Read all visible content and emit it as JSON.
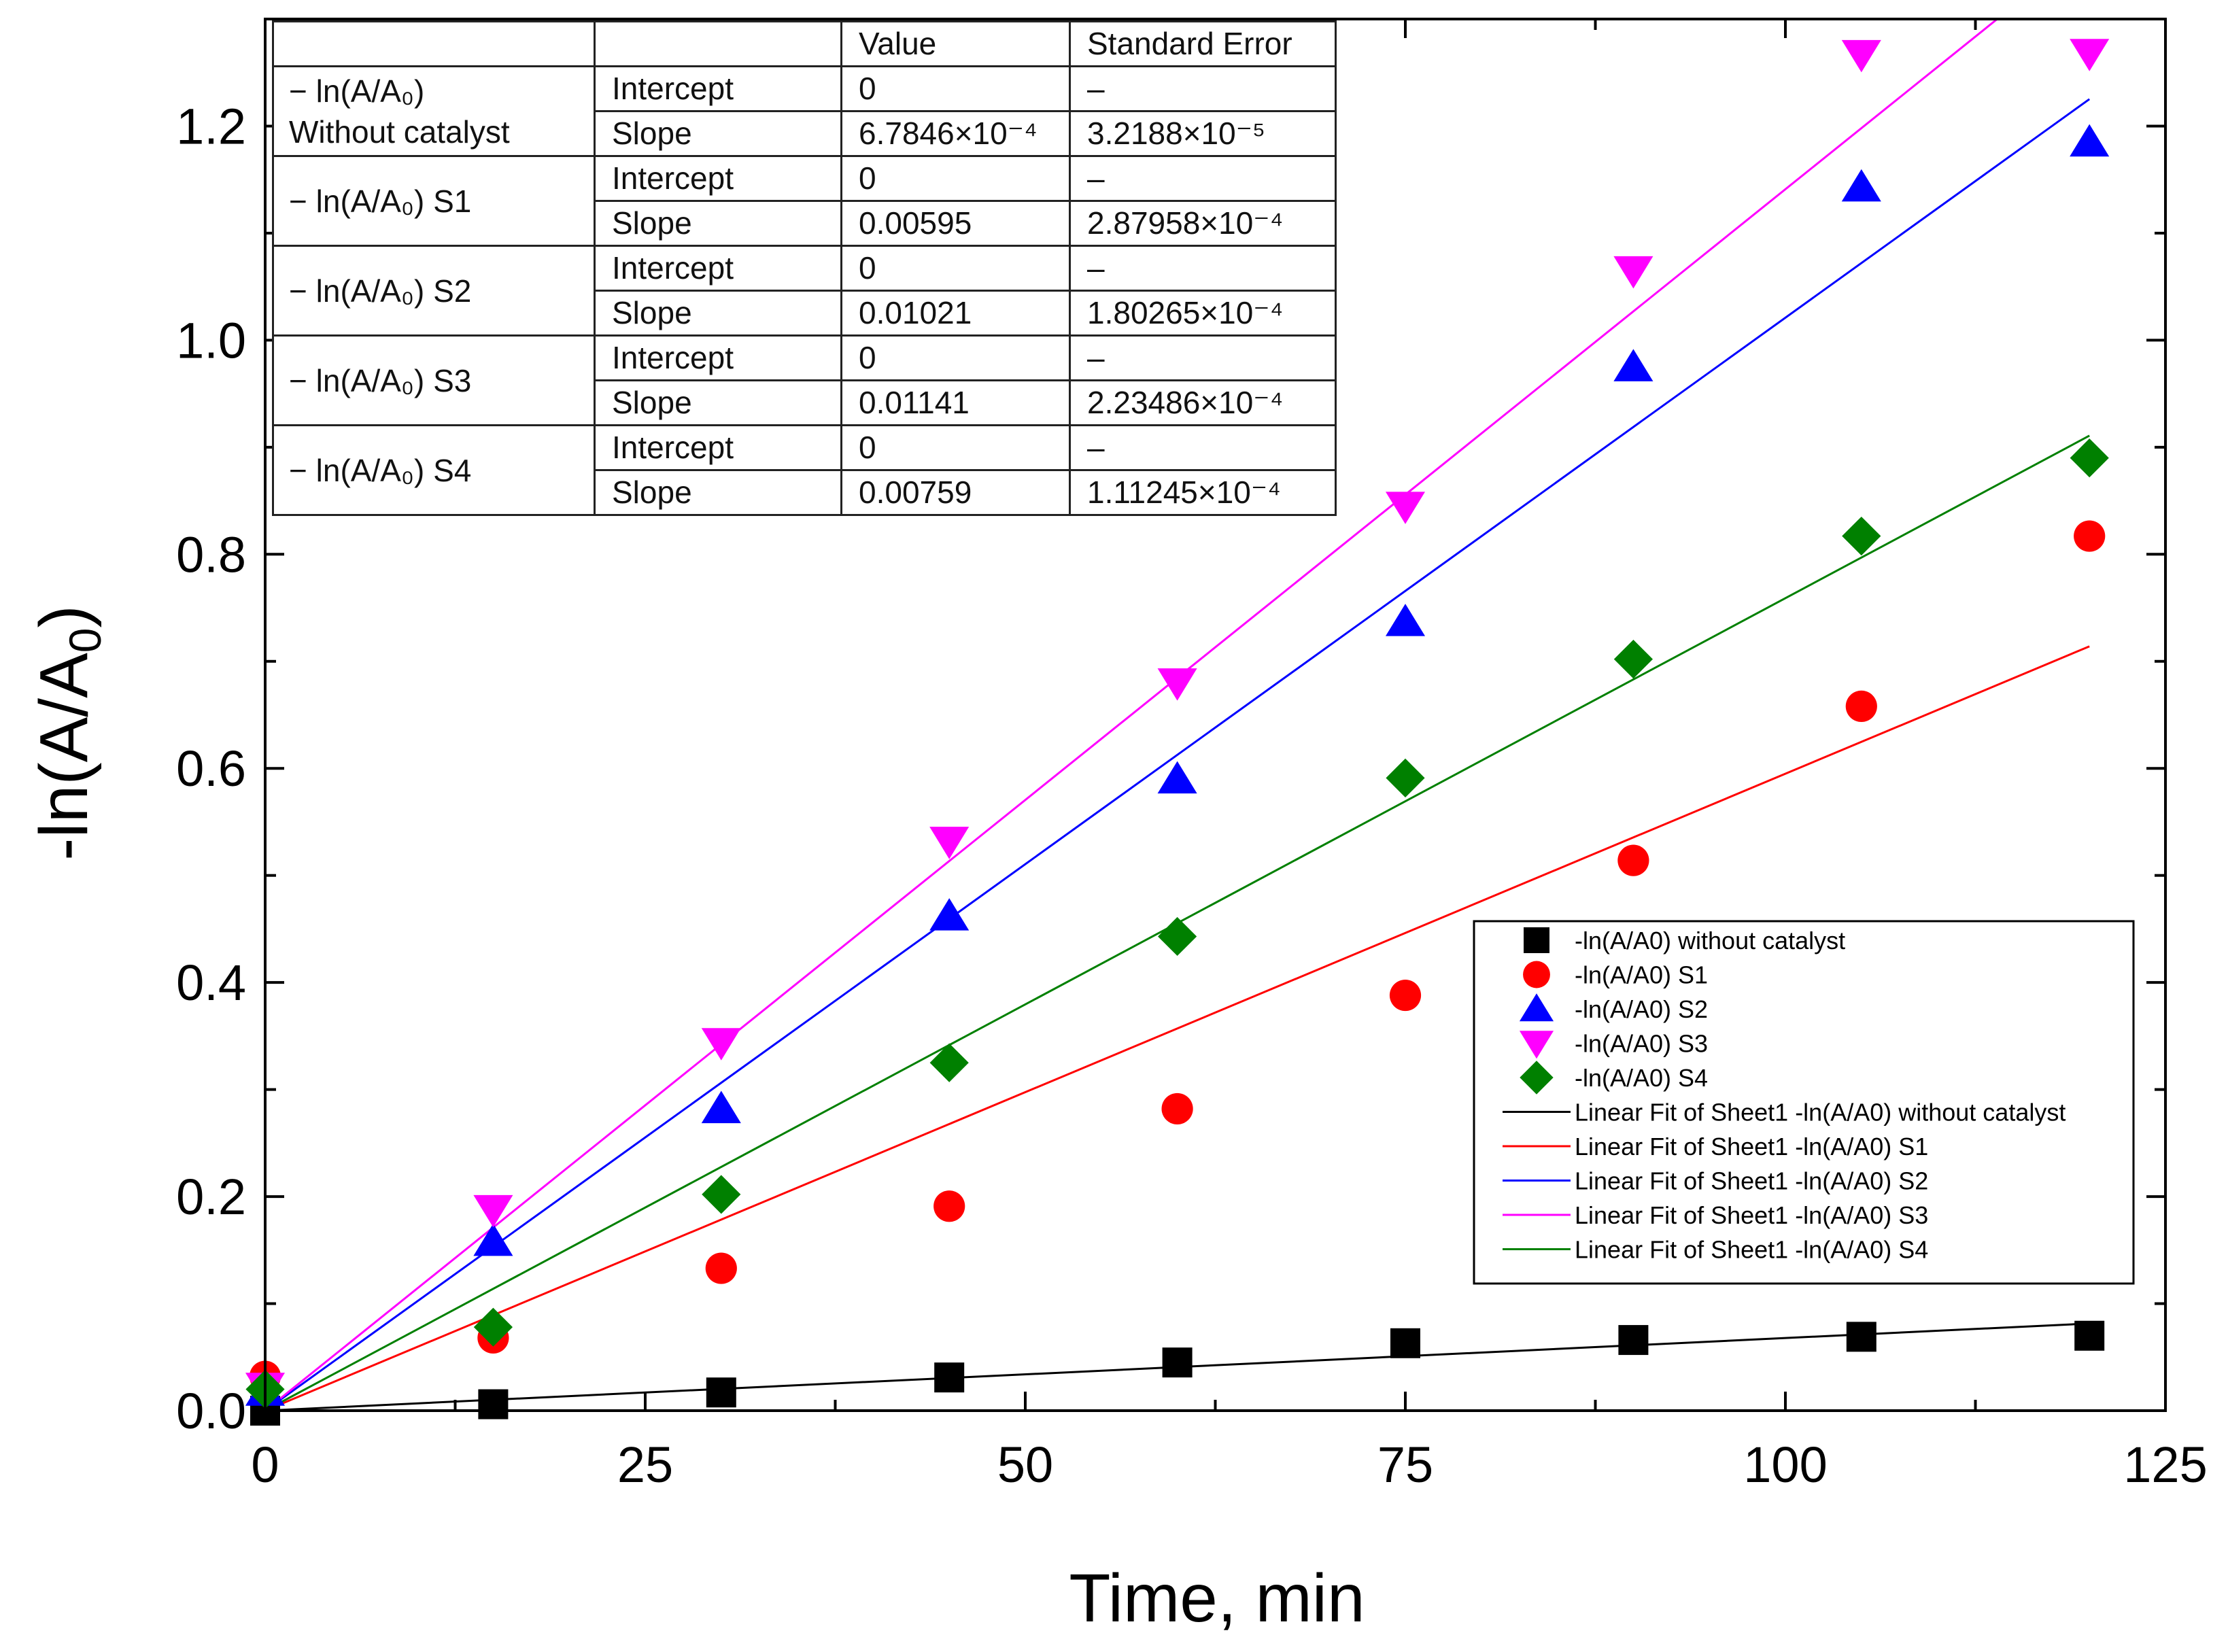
{
  "chart_data": {
    "type": "scatter",
    "xlabel": "Time, min",
    "ylabel": "-ln(A/A0)",
    "ylabel_main": "-ln(A/A",
    "ylabel_sub": "0",
    "ylabel_close": ")",
    "xlim": [
      0,
      125
    ],
    "ylim": [
      0,
      1.3
    ],
    "x_ticks": [
      "0",
      "25",
      "50",
      "75",
      "100",
      "125"
    ],
    "y_ticks": [
      "0.0",
      "0.2",
      "0.4",
      "0.6",
      "0.8",
      "1.0",
      "1.2"
    ],
    "x": [
      0,
      15,
      30,
      45,
      60,
      75,
      90,
      105,
      120
    ],
    "series": [
      {
        "name": "-ln(A/A0) without catalyst",
        "marker": "square",
        "color": "#000000",
        "values": [
          0.0,
          0.006,
          0.017,
          0.031,
          0.045,
          0.063,
          0.066,
          0.069,
          0.07
        ]
      },
      {
        "name": "-ln(A/A0) S1",
        "marker": "circle",
        "color": "#ff0000",
        "values": [
          0.032,
          0.068,
          0.133,
          0.191,
          0.282,
          0.388,
          0.514,
          0.658,
          0.817
        ]
      },
      {
        "name": "-ln(A/A0) S2",
        "marker": "triangle-up",
        "color": "#0000ff",
        "values": [
          0.018,
          0.158,
          0.282,
          0.462,
          0.59,
          0.737,
          0.975,
          1.143,
          1.185
        ]
      },
      {
        "name": "-ln(A/A0) S3",
        "marker": "triangle-down",
        "color": "#ff00ff",
        "values": [
          0.022,
          0.188,
          0.344,
          0.532,
          0.68,
          0.845,
          1.065,
          1.267,
          1.268
        ]
      },
      {
        "name": "-ln(A/A0) S4",
        "marker": "diamond",
        "color": "#008000",
        "values": [
          0.02,
          0.078,
          0.202,
          0.325,
          0.443,
          0.591,
          0.702,
          0.817,
          0.89
        ]
      }
    ],
    "fits": [
      {
        "name": "Linear Fit of Sheet1 -ln(A/A0) without catalyst",
        "color": "#000000",
        "intercept": 0,
        "slope": 0.00067846
      },
      {
        "name": "Linear Fit of Sheet1 -ln(A/A0) S1",
        "color": "#ff0000",
        "intercept": 0,
        "slope": 0.00595
      },
      {
        "name": "Linear Fit of Sheet1 -ln(A/A0) S2",
        "color": "#0000ff",
        "intercept": 0,
        "slope": 0.01021
      },
      {
        "name": "Linear Fit of Sheet1 -ln(A/A0) S3",
        "color": "#ff00ff",
        "intercept": 0,
        "slope": 0.01141
      },
      {
        "name": "Linear Fit of Sheet1 -ln(A/A0) S4",
        "color": "#008000",
        "intercept": 0,
        "slope": 0.00759
      }
    ],
    "legend_position": "center-right",
    "fit_table": {
      "headers": [
        "",
        "",
        "Value",
        "Standard Error"
      ],
      "groups": [
        {
          "label_lines": [
            "− ln(A/A₀)",
            "Without catalyst"
          ],
          "rows": [
            [
              "Intercept",
              "0",
              "–"
            ],
            [
              "Slope",
              "6.7846×10⁻⁴",
              "3.2188×10⁻⁵"
            ]
          ]
        },
        {
          "label_lines": [
            "− ln(A/A₀) S1"
          ],
          "rows": [
            [
              "Intercept",
              "0",
              "–"
            ],
            [
              "Slope",
              "0.00595",
              "2.87958×10⁻⁴"
            ]
          ]
        },
        {
          "label_lines": [
            "− ln(A/A₀) S2"
          ],
          "rows": [
            [
              "Intercept",
              "0",
              "–"
            ],
            [
              "Slope",
              "0.01021",
              "1.80265×10⁻⁴"
            ]
          ]
        },
        {
          "label_lines": [
            "− ln(A/A₀) S3"
          ],
          "rows": [
            [
              "Intercept",
              "0",
              "–"
            ],
            [
              "Slope",
              "0.01141",
              "2.23486×10⁻⁴"
            ]
          ]
        },
        {
          "label_lines": [
            "− ln(A/A₀) S4"
          ],
          "rows": [
            [
              "Intercept",
              "0",
              "–"
            ],
            [
              "Slope",
              "0.00759",
              "1.11245×10⁻⁴"
            ]
          ]
        }
      ]
    }
  }
}
